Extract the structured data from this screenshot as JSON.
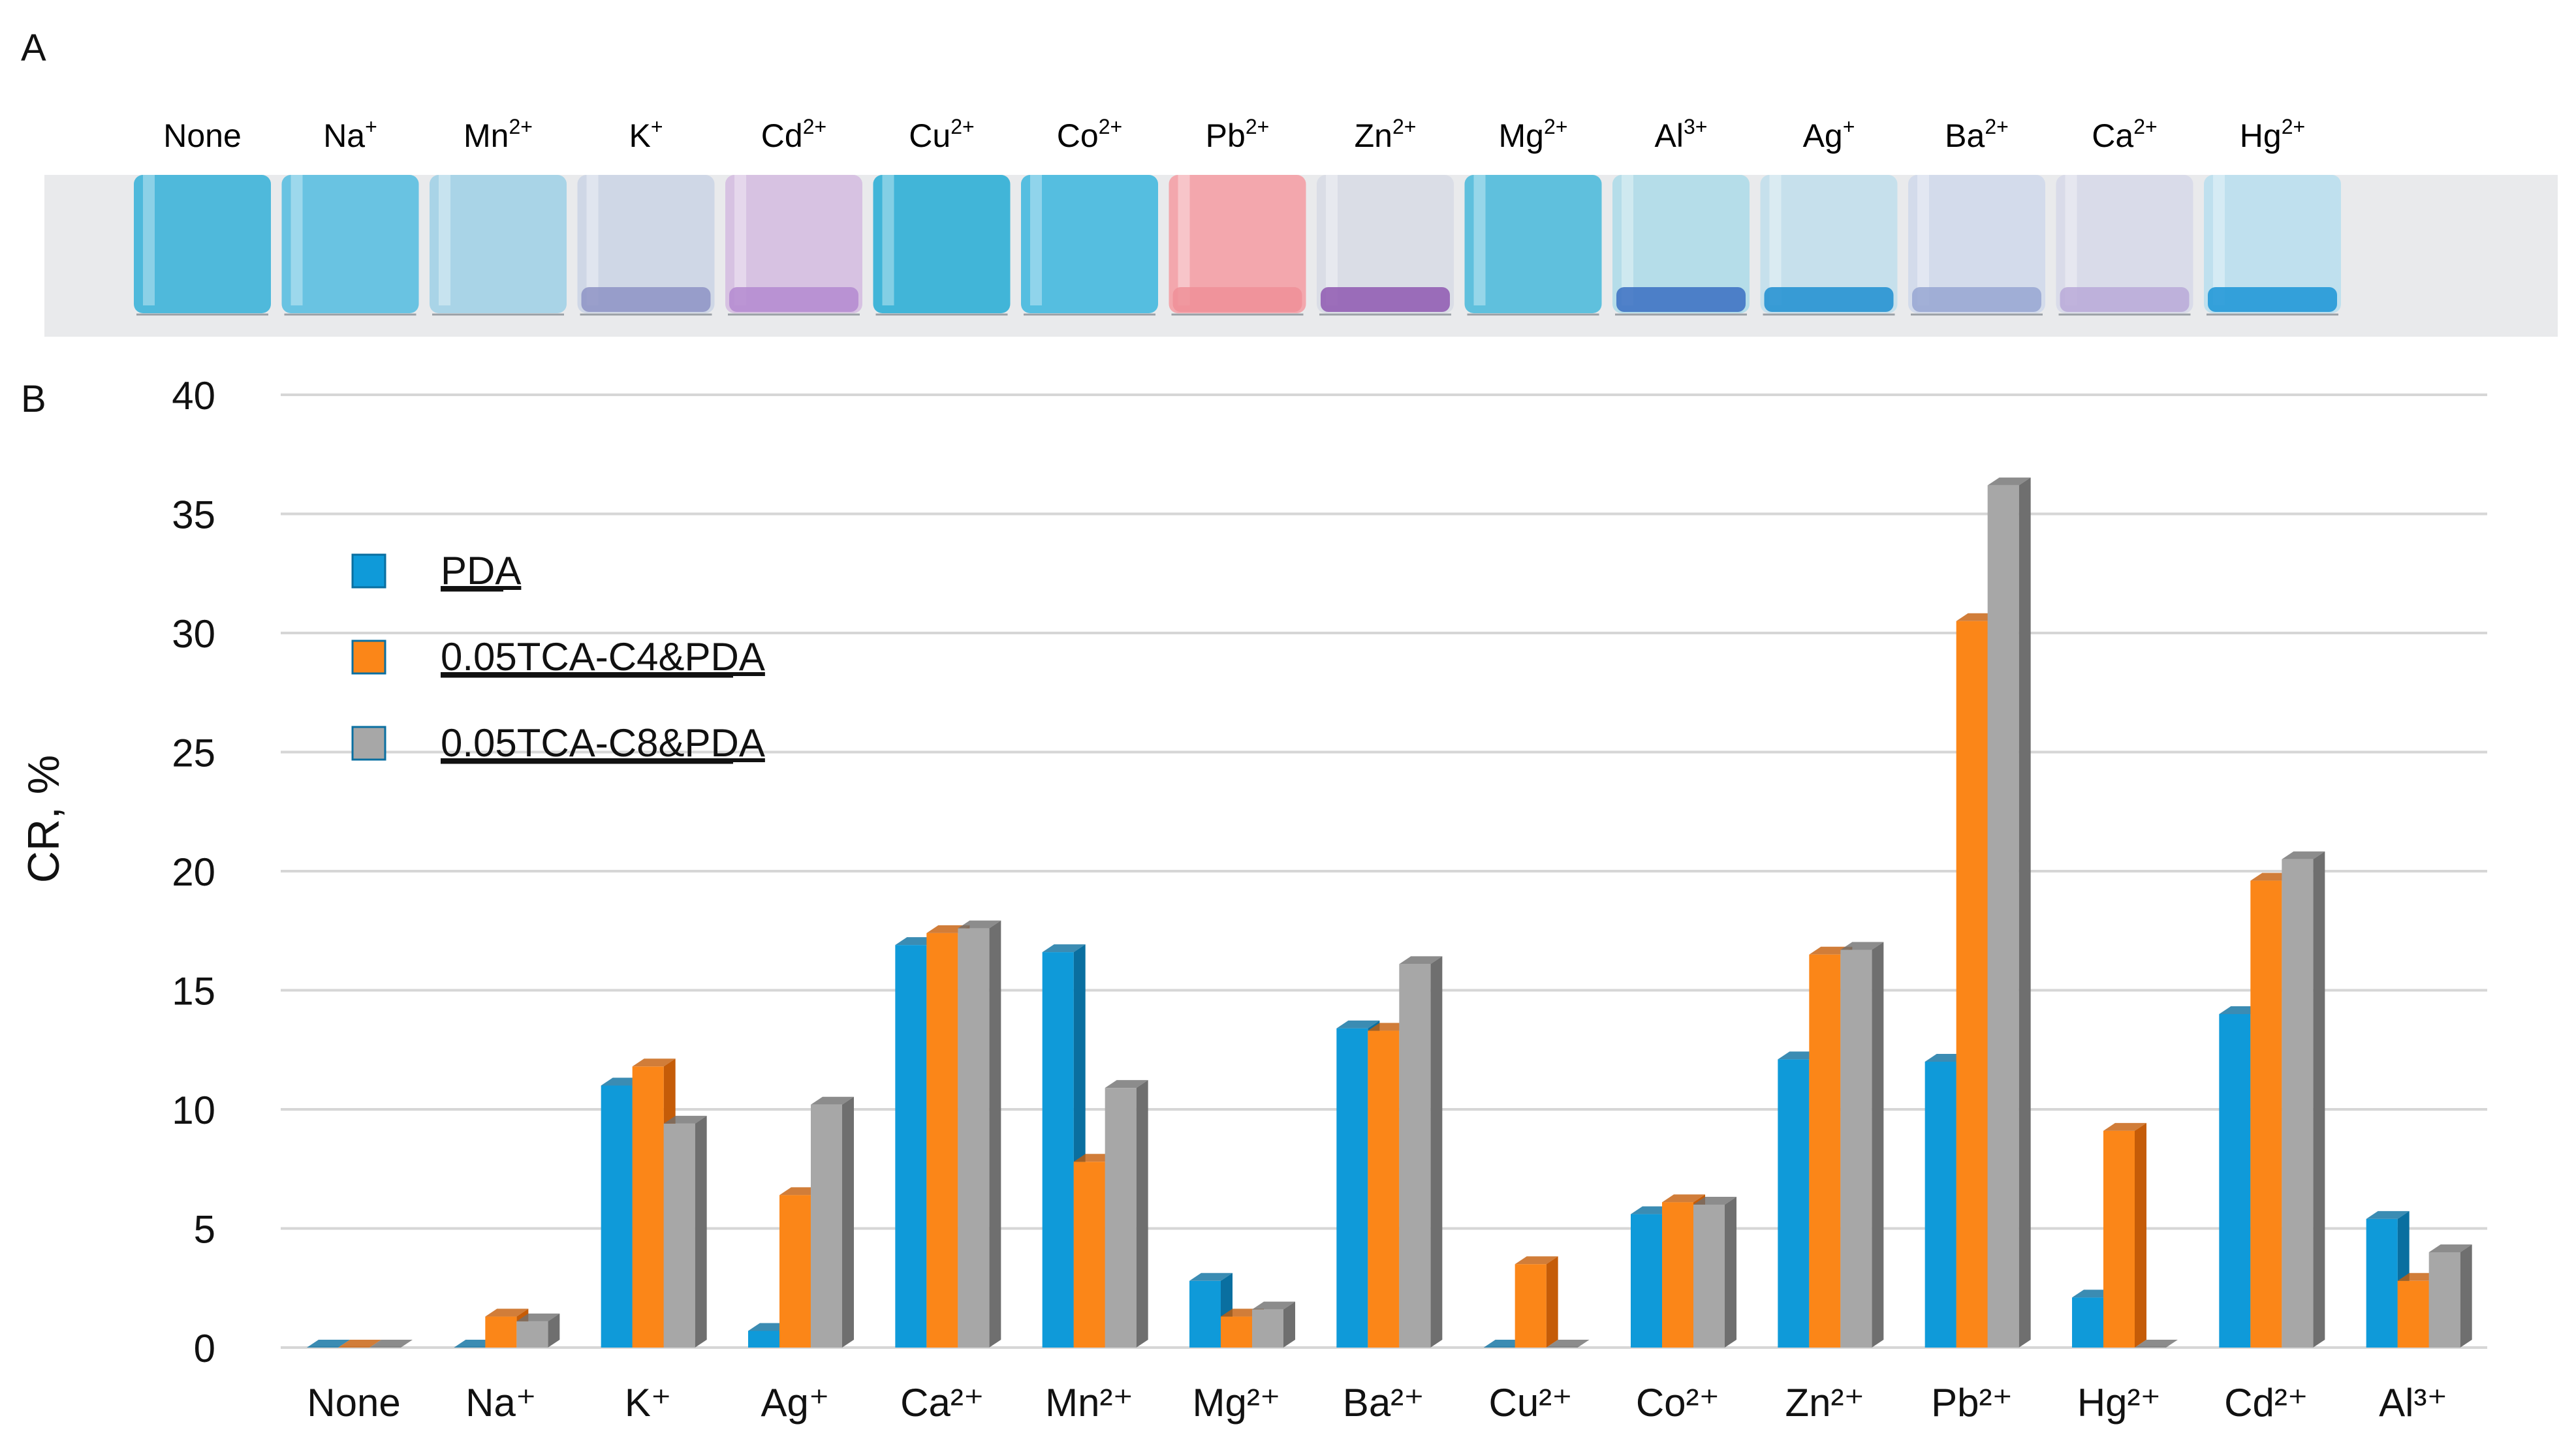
{
  "panel_a": {
    "label": "A",
    "vials": [
      {
        "base": "None",
        "sup": "",
        "color": "#4fb9db",
        "sediment": ""
      },
      {
        "base": "Na",
        "sup": "+",
        "color": "#69c3e2",
        "sediment": ""
      },
      {
        "base": "Mn",
        "sup": "2+",
        "color": "#a9d4e7",
        "sediment": ""
      },
      {
        "base": "K",
        "sup": "+",
        "color": "#cfd7e6",
        "sediment": "#8d93c4"
      },
      {
        "base": "Cd",
        "sup": "2+",
        "color": "#d7c2e2",
        "sediment": "#b48ad0"
      },
      {
        "base": "Cu",
        "sup": "2+",
        "color": "#41b5d8",
        "sediment": ""
      },
      {
        "base": "Co",
        "sup": "2+",
        "color": "#55bee0",
        "sediment": ""
      },
      {
        "base": "Pb",
        "sup": "2+",
        "color": "#f3a7ad",
        "sediment": "#ef8f98"
      },
      {
        "base": "Zn",
        "sup": "2+",
        "color": "#dadde6",
        "sediment": "#8e58b0"
      },
      {
        "base": "Mg",
        "sup": "2+",
        "color": "#5fc0dd",
        "sediment": ""
      },
      {
        "base": "Al",
        "sup": "3+",
        "color": "#b5dde9",
        "sediment": "#3a6fc2"
      },
      {
        "base": "Ag",
        "sup": "+",
        "color": "#c6e0ec",
        "sediment": "#1d8ed1"
      },
      {
        "base": "Ba",
        "sup": "2+",
        "color": "#d3dbeb",
        "sediment": "#97a6d2"
      },
      {
        "base": "Ca",
        "sup": "2+",
        "color": "#d9dbe9",
        "sediment": "#b8a9d8"
      },
      {
        "base": "Hg",
        "sup": "2+",
        "color": "#bfe0ee",
        "sediment": "#1a94d6"
      }
    ]
  },
  "panel_b_label": "B",
  "chart_data": {
    "type": "bar",
    "ylabel": "CR, %",
    "xlabel": "",
    "ylim": [
      0,
      40
    ],
    "yticks": [
      0,
      5,
      10,
      15,
      20,
      25,
      30,
      35,
      40
    ],
    "grid": true,
    "legend_position": "top-left",
    "categories": [
      "None",
      "Na⁺",
      "K⁺",
      "Ag⁺",
      "Ca²⁺",
      "Mn²⁺",
      "Mg²⁺",
      "Ba²⁺",
      "Cu²⁺",
      "Co²⁺",
      "Zn²⁺",
      "Pb²⁺",
      "Hg²⁺",
      "Cd²⁺",
      "Al³⁺"
    ],
    "series": [
      {
        "name": "PDA",
        "color": "#0f9ad9",
        "side_color": "#0a6fa0",
        "values": [
          0,
          0,
          11.0,
          0.7,
          16.9,
          16.6,
          2.8,
          13.4,
          0,
          5.6,
          12.1,
          12.0,
          2.1,
          14.0,
          5.4
        ]
      },
      {
        "name": "0.05TCA-C4&PDA",
        "color": "#fb8618",
        "side_color": "#c55c08",
        "values": [
          0,
          1.3,
          11.8,
          6.4,
          17.4,
          7.8,
          1.3,
          13.3,
          3.5,
          6.1,
          16.5,
          30.5,
          9.1,
          19.6,
          2.8
        ]
      },
      {
        "name": "0.05TCA-C8&PDA",
        "color": "#a7a7a7",
        "side_color": "#6f6f6f",
        "values": [
          0,
          1.1,
          9.4,
          10.2,
          17.6,
          10.9,
          1.6,
          16.1,
          0,
          6.0,
          16.7,
          36.2,
          0,
          20.5,
          4.0
        ]
      }
    ]
  }
}
